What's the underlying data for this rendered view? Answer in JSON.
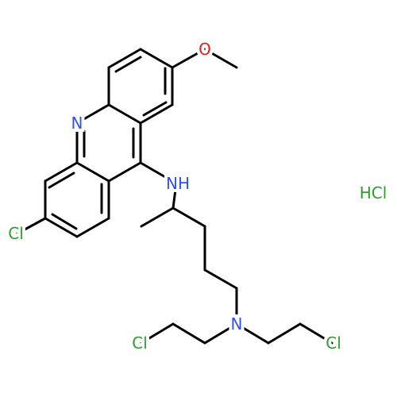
{
  "atoms": [
    {
      "label": "O"
    },
    {
      "label": "N"
    },
    {
      "label": "NH"
    },
    {
      "label": "Cl"
    },
    {
      "label": "N"
    },
    {
      "label": "Cl"
    },
    {
      "label": "Cl"
    }
  ],
  "salt": "HCl"
}
